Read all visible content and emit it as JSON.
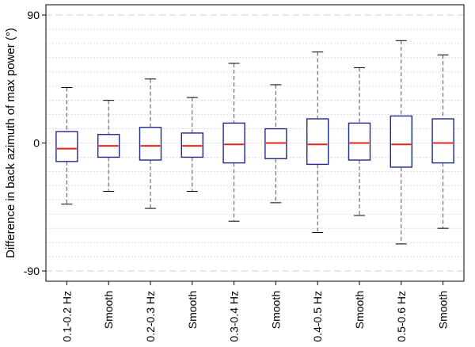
{
  "chart_data": {
    "type": "box",
    "title": "",
    "xlabel": "",
    "ylabel": "Difference in back azimuth of max power (°)",
    "ylim": [
      -90,
      90
    ],
    "yticks": [
      -90,
      0,
      90
    ],
    "ytick_labels": [
      "-90",
      "0",
      "90"
    ],
    "categories": [
      "0.1-0.2 Hz",
      "Smooth",
      "0.2-0.3 Hz",
      "Smooth",
      "0.3-0.4 Hz",
      "Smooth",
      "0.4-0.5 Hz",
      "Smooth",
      "0.5-0.6 Hz",
      "Smooth"
    ],
    "boxes": [
      {
        "whisker_low": -43,
        "q1": -13,
        "median": -4,
        "q3": 8,
        "whisker_high": 39
      },
      {
        "whisker_low": -34,
        "q1": -10,
        "median": -2,
        "q3": 6,
        "whisker_high": 30
      },
      {
        "whisker_low": -46,
        "q1": -12,
        "median": -2,
        "q3": 11,
        "whisker_high": 45
      },
      {
        "whisker_low": -34,
        "q1": -10,
        "median": -2,
        "q3": 7,
        "whisker_high": 32
      },
      {
        "whisker_low": -55,
        "q1": -14,
        "median": -1,
        "q3": 14,
        "whisker_high": 56
      },
      {
        "whisker_low": -42,
        "q1": -11,
        "median": 0,
        "q3": 10,
        "whisker_high": 41
      },
      {
        "whisker_low": -63,
        "q1": -15,
        "median": -1,
        "q3": 17,
        "whisker_high": 64
      },
      {
        "whisker_low": -51,
        "q1": -12,
        "median": 0,
        "q3": 14,
        "whisker_high": 53
      },
      {
        "whisker_low": -71,
        "q1": -17,
        "median": -1,
        "q3": 19,
        "whisker_high": 72
      },
      {
        "whisker_low": -60,
        "q1": -14,
        "median": 0,
        "q3": 17,
        "whisker_high": 62
      }
    ],
    "grid": {
      "horizontal_dotted_every": 10,
      "dashed_at": [
        -90,
        90
      ]
    },
    "colors": {
      "box": "#1f2a8a",
      "median": "#e8231b",
      "whisker": "#555555",
      "cap": "#000000",
      "grid": "#c8c8c8",
      "axis": "#000000"
    }
  }
}
